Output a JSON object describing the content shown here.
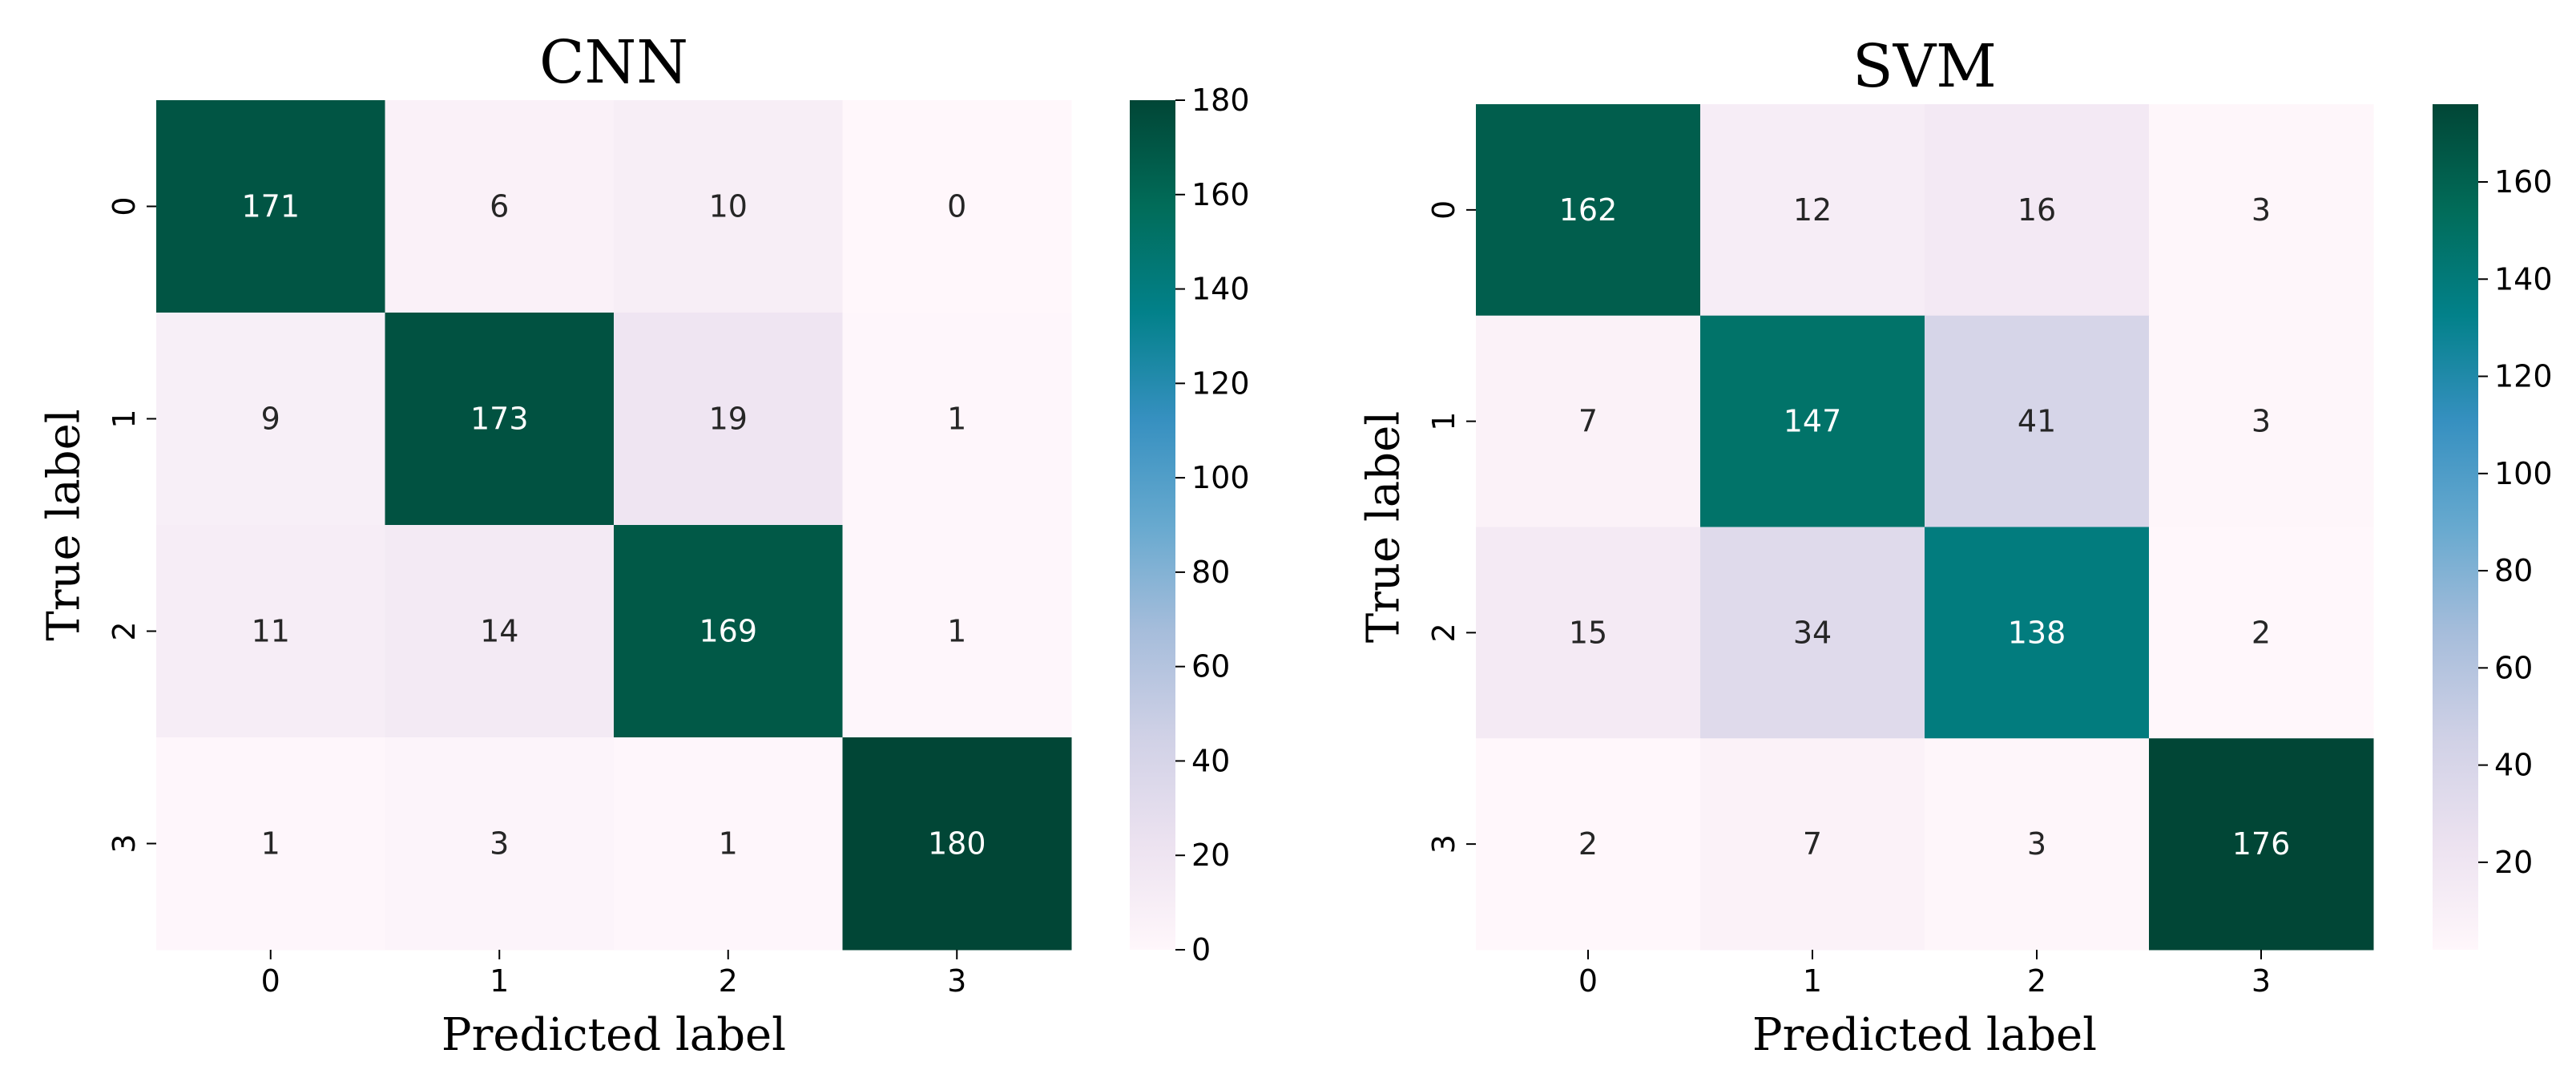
{
  "chart_data": [
    {
      "type": "heatmap",
      "title": "CNN",
      "xlabel": "Predicted label",
      "ylabel": "True label",
      "x_tick_labels": [
        "0",
        "1",
        "2",
        "3"
      ],
      "y_tick_labels": [
        "0",
        "1",
        "2",
        "3"
      ],
      "values": [
        [
          171,
          6,
          10,
          0
        ],
        [
          9,
          173,
          19,
          1
        ],
        [
          11,
          14,
          169,
          1
        ],
        [
          1,
          3,
          1,
          180
        ]
      ],
      "colorbar": {
        "min": 0,
        "max": 180,
        "ticks": [
          "0",
          "20",
          "40",
          "60",
          "80",
          "100",
          "120",
          "140",
          "160",
          "180"
        ],
        "colormap": "PuBuGn"
      }
    },
    {
      "type": "heatmap",
      "title": "SVM",
      "xlabel": "Predicted label",
      "ylabel": "True label",
      "x_tick_labels": [
        "0",
        "1",
        "2",
        "3"
      ],
      "y_tick_labels": [
        "0",
        "1",
        "2",
        "3"
      ],
      "values": [
        [
          162,
          12,
          16,
          3
        ],
        [
          7,
          147,
          41,
          3
        ],
        [
          15,
          34,
          138,
          2
        ],
        [
          2,
          7,
          3,
          176
        ]
      ],
      "colorbar": {
        "min": 2,
        "max": 176,
        "ticks": [
          "20",
          "40",
          "60",
          "80",
          "100",
          "120",
          "140",
          "160"
        ],
        "colormap": "PuBuGn"
      }
    }
  ],
  "colors": {
    "colormap_stops": [
      "#fff7fb",
      "#ece2f0",
      "#d0d1e6",
      "#a6bddb",
      "#67a9cf",
      "#3690c0",
      "#02818a",
      "#016c59",
      "#014636"
    ],
    "text_dark": "#262626",
    "text_light": "#ffffff",
    "axis": "#000000"
  }
}
